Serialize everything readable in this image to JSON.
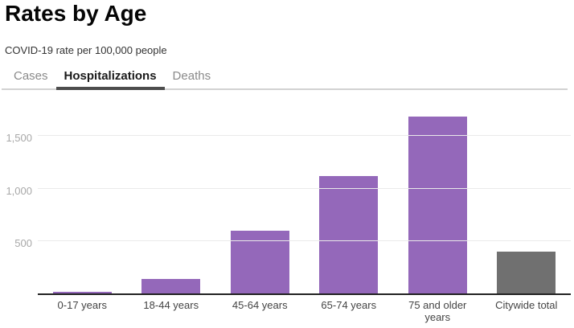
{
  "header": {
    "title": "Rates by Age",
    "subtitle": "COVID-19 rate per 100,000 people"
  },
  "tabs": {
    "items": [
      {
        "label": "Cases",
        "active": false
      },
      {
        "label": "Hospitalizations",
        "active": true
      },
      {
        "label": "Deaths",
        "active": false
      }
    ]
  },
  "chart_data": {
    "type": "bar",
    "title": "Rates by Age",
    "subtitle": "COVID-19 rate per 100,000 people",
    "active_series": "Hospitalizations",
    "categories": [
      "0-17 years",
      "18-44 years",
      "45-64 years",
      "65-74 years",
      "75 and older years",
      "Citywide total"
    ],
    "values": [
      15,
      135,
      600,
      1115,
      1685,
      400
    ],
    "bar_colors": [
      "#9468ba",
      "#9468ba",
      "#9468ba",
      "#9468ba",
      "#9468ba",
      "#707070"
    ],
    "yticks": [
      500,
      1000,
      1500
    ],
    "ytick_labels": [
      "500",
      "1,000",
      "1,500"
    ],
    "ylim": [
      0,
      1820
    ],
    "xlabel": "",
    "ylabel": "",
    "grid": true,
    "legend": false
  },
  "colors": {
    "bar_age_group": "#9468ba",
    "bar_citywide": "#707070",
    "active_tab_underline": "#4d4d4d",
    "tab_inactive_text": "#8a8a8a",
    "gridline": "#eaeaea",
    "axis_line": "#222222",
    "y_tick_text": "#a8a8a8",
    "x_tick_text": "#444444"
  }
}
